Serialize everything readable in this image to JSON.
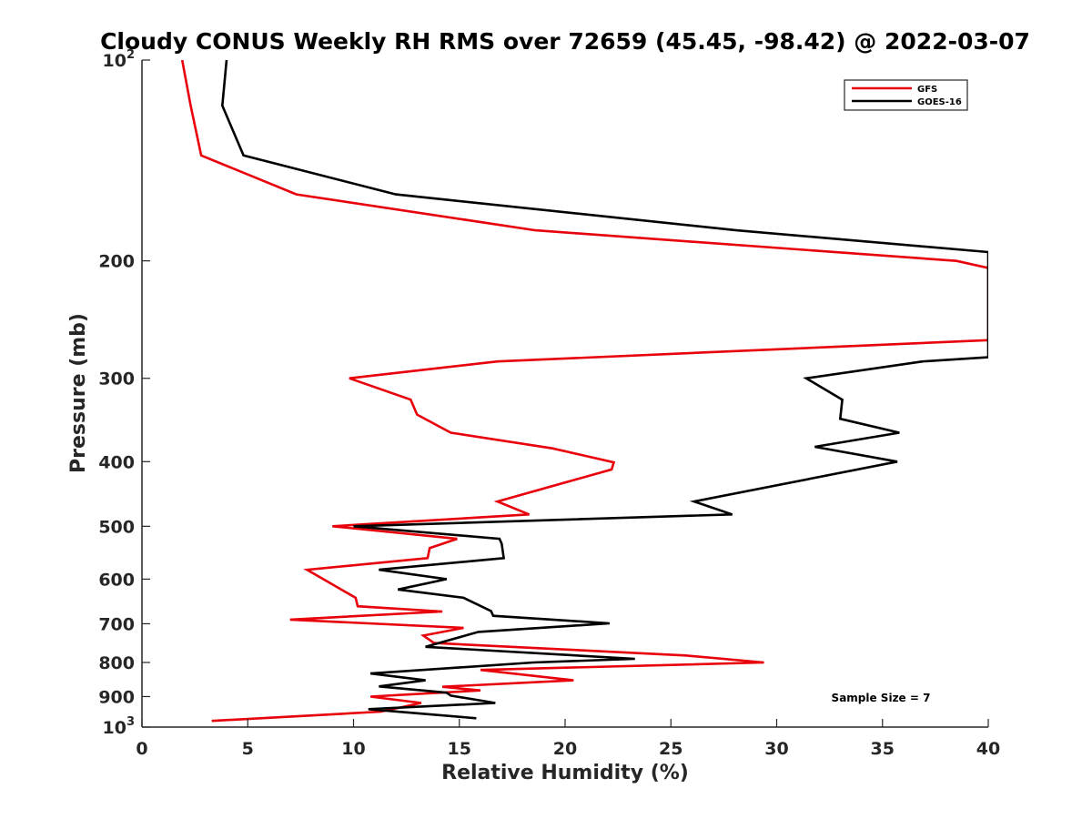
{
  "chart_data": {
    "type": "line",
    "title": "Cloudy CONUS Weekly RH RMS over 72659 (45.45, -98.42) @ 2022-03-07",
    "xlabel": "Relative Humidity (%)",
    "ylabel": "Pressure (mb)",
    "xlim": [
      0,
      40
    ],
    "ylim": [
      100,
      1000
    ],
    "y_scale": "log",
    "y_reversed": true,
    "x_ticks": [
      0,
      5,
      10,
      15,
      20,
      25,
      30,
      35,
      40
    ],
    "y_ticks": [
      {
        "value": 100,
        "label": "10",
        "sup": "2"
      },
      {
        "value": 200,
        "label": "200",
        "sup": ""
      },
      {
        "value": 300,
        "label": "300",
        "sup": ""
      },
      {
        "value": 400,
        "label": "400",
        "sup": ""
      },
      {
        "value": 500,
        "label": "500",
        "sup": ""
      },
      {
        "value": 600,
        "label": "600",
        "sup": ""
      },
      {
        "value": 700,
        "label": "700",
        "sup": ""
      },
      {
        "value": 800,
        "label": "800",
        "sup": ""
      },
      {
        "value": 900,
        "label": "900",
        "sup": ""
      },
      {
        "value": 1000,
        "label": "10",
        "sup": "3"
      }
    ],
    "grid": false,
    "legend_position": "top-right",
    "annotation": "Sample Size = 7",
    "series": [
      {
        "name": "GFS",
        "color": "#e8000b",
        "points": [
          [
            1.9,
            100
          ],
          [
            2.3,
            117
          ],
          [
            2.8,
            139
          ],
          [
            7.3,
            159
          ],
          [
            18.6,
            180
          ],
          [
            38.5,
            200
          ],
          [
            40,
            205
          ],
          [
            40,
            263
          ],
          [
            16.8,
            283
          ],
          [
            9.8,
            300
          ],
          [
            12.7,
            323
          ],
          [
            13.0,
            340
          ],
          [
            14.6,
            362
          ],
          [
            19.4,
            382
          ],
          [
            22.3,
            401
          ],
          [
            22.2,
            411
          ],
          [
            16.8,
            459
          ],
          [
            18.3,
            480
          ],
          [
            9.0,
            500
          ],
          [
            14.9,
            522
          ],
          [
            13.6,
            539
          ],
          [
            13.5,
            558
          ],
          [
            7.8,
            581
          ],
          [
            10.1,
            640
          ],
          [
            10.2,
            659
          ],
          [
            14.2,
            671
          ],
          [
            7.0,
            690
          ],
          [
            15.2,
            710
          ],
          [
            13.3,
            729
          ],
          [
            13.8,
            748
          ],
          [
            25.7,
            781
          ],
          [
            29.4,
            800
          ],
          [
            16.0,
            821
          ],
          [
            20.4,
            851
          ],
          [
            14.2,
            870
          ],
          [
            16.0,
            881
          ],
          [
            10.8,
            900
          ],
          [
            13.2,
            920
          ],
          [
            11.3,
            948
          ],
          [
            3.3,
            979
          ]
        ]
      },
      {
        "name": "GOES-16",
        "color": "#000000",
        "points": [
          [
            4.0,
            100
          ],
          [
            3.8,
            117
          ],
          [
            4.8,
            139
          ],
          [
            12.0,
            159
          ],
          [
            28.1,
            180
          ],
          [
            40,
            194
          ],
          [
            40,
            279
          ],
          [
            36.9,
            283
          ],
          [
            31.4,
            300
          ],
          [
            33.1,
            323
          ],
          [
            33.0,
            345
          ],
          [
            35.8,
            362
          ],
          [
            31.8,
            380
          ],
          [
            35.7,
            400
          ],
          [
            26.1,
            459
          ],
          [
            27.9,
            480
          ],
          [
            10.0,
            500
          ],
          [
            16.9,
            522
          ],
          [
            17.0,
            531
          ],
          [
            17.1,
            558
          ],
          [
            11.2,
            581
          ],
          [
            14.4,
            600
          ],
          [
            12.1,
            622
          ],
          [
            15.2,
            640
          ],
          [
            16.5,
            670
          ],
          [
            16.6,
            681
          ],
          [
            22.1,
            699
          ],
          [
            15.9,
            720
          ],
          [
            13.4,
            758
          ],
          [
            23.3,
            790
          ],
          [
            18.5,
            800
          ],
          [
            10.8,
            831
          ],
          [
            13.4,
            851
          ],
          [
            11.2,
            869
          ],
          [
            14.4,
            888
          ],
          [
            14.6,
            897
          ],
          [
            16.7,
            920
          ],
          [
            10.7,
            940
          ],
          [
            15.8,
            970
          ]
        ]
      }
    ]
  }
}
